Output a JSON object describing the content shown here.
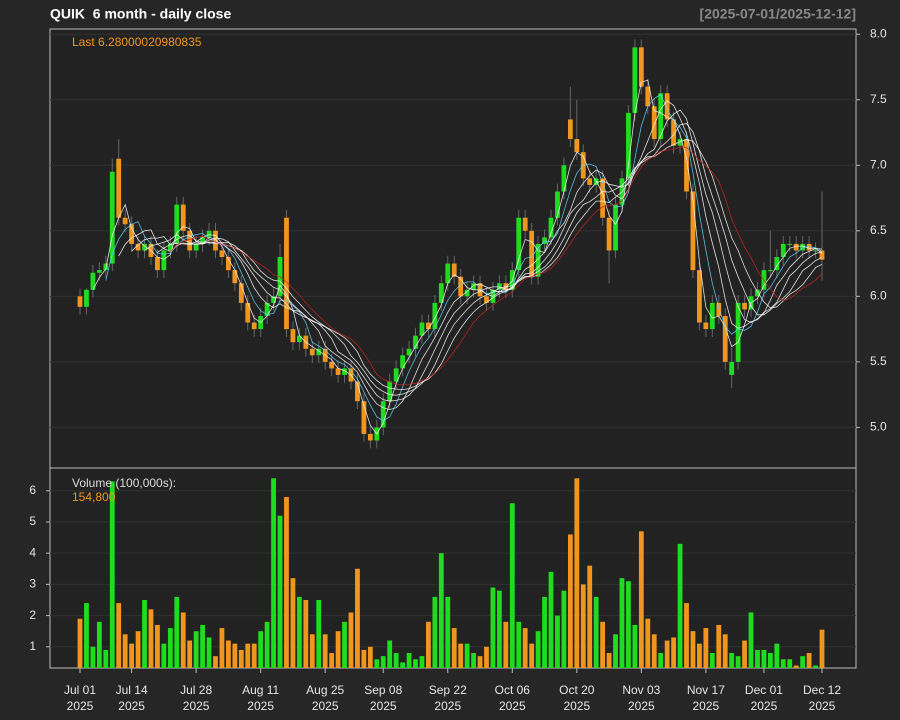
{
  "chart_data": [
    {
      "type": "candlestick",
      "title": "QUIK  6 month - daily close",
      "subtitle": "[2025-07-01/2025-12-12]",
      "annotation": "Last 6.28000020980835",
      "up_color": "#1fdc1f",
      "down_color": "#f0961e",
      "x": [
        "2025-07-01",
        "2025-07-02",
        "2025-07-03",
        "2025-07-07",
        "2025-07-08",
        "2025-07-09",
        "2025-07-10",
        "2025-07-11",
        "2025-07-14",
        "2025-07-15",
        "2025-07-16",
        "2025-07-17",
        "2025-07-18",
        "2025-07-21",
        "2025-07-22",
        "2025-07-23",
        "2025-07-24",
        "2025-07-25",
        "2025-07-28",
        "2025-07-29",
        "2025-07-30",
        "2025-07-31",
        "2025-08-01",
        "2025-08-04",
        "2025-08-05",
        "2025-08-06",
        "2025-08-07",
        "2025-08-08",
        "2025-08-11",
        "2025-08-12",
        "2025-08-13",
        "2025-08-14",
        "2025-08-15",
        "2025-08-18",
        "2025-08-19",
        "2025-08-20",
        "2025-08-21",
        "2025-08-22",
        "2025-08-25",
        "2025-08-26",
        "2025-08-27",
        "2025-08-28",
        "2025-08-29",
        "2025-09-02",
        "2025-09-03",
        "2025-09-04",
        "2025-09-05",
        "2025-09-08",
        "2025-09-09",
        "2025-09-10",
        "2025-09-11",
        "2025-09-12",
        "2025-09-15",
        "2025-09-16",
        "2025-09-17",
        "2025-09-18",
        "2025-09-19",
        "2025-09-22",
        "2025-09-23",
        "2025-09-24",
        "2025-09-25",
        "2025-09-26",
        "2025-09-29",
        "2025-09-30",
        "2025-10-01",
        "2025-10-02",
        "2025-10-03",
        "2025-10-06",
        "2025-10-07",
        "2025-10-08",
        "2025-10-09",
        "2025-10-10",
        "2025-10-13",
        "2025-10-14",
        "2025-10-15",
        "2025-10-16",
        "2025-10-17",
        "2025-10-20",
        "2025-10-21",
        "2025-10-22",
        "2025-10-23",
        "2025-10-24",
        "2025-10-27",
        "2025-10-28",
        "2025-10-29",
        "2025-10-30",
        "2025-10-31",
        "2025-11-03",
        "2025-11-04",
        "2025-11-05",
        "2025-11-06",
        "2025-11-07",
        "2025-11-10",
        "2025-11-11",
        "2025-11-12",
        "2025-11-13",
        "2025-11-14",
        "2025-11-17",
        "2025-11-18",
        "2025-11-19",
        "2025-11-20",
        "2025-11-21",
        "2025-11-24",
        "2025-11-25",
        "2025-11-26",
        "2025-11-28",
        "2025-12-01",
        "2025-12-02",
        "2025-12-03",
        "2025-12-04",
        "2025-12-05",
        "2025-12-08",
        "2025-12-09",
        "2025-12-10",
        "2025-12-11",
        "2025-12-12"
      ],
      "open": [
        6.0,
        5.92,
        6.05,
        6.18,
        6.2,
        6.25,
        7.05,
        6.6,
        6.55,
        6.4,
        6.35,
        6.4,
        6.3,
        6.2,
        6.35,
        6.4,
        6.7,
        6.5,
        6.35,
        6.4,
        6.45,
        6.5,
        6.35,
        6.3,
        6.2,
        6.1,
        5.95,
        5.8,
        5.75,
        5.85,
        5.95,
        6.0,
        6.6,
        5.75,
        5.65,
        5.7,
        5.6,
        5.55,
        5.6,
        5.5,
        5.45,
        5.4,
        5.45,
        5.35,
        5.2,
        4.95,
        4.9,
        5.0,
        5.2,
        5.35,
        5.45,
        5.55,
        5.6,
        5.7,
        5.8,
        5.75,
        5.95,
        6.1,
        6.25,
        6.15,
        6.0,
        6.05,
        6.1,
        6.0,
        5.95,
        6.05,
        6.1,
        6.05,
        6.2,
        6.6,
        6.5,
        6.15,
        6.4,
        6.45,
        6.6,
        6.8,
        7.35,
        7.2,
        7.1,
        6.9,
        6.85,
        6.9,
        6.6,
        6.35,
        6.7,
        6.9,
        7.4,
        7.9,
        7.6,
        7.45,
        7.2,
        7.55,
        7.35,
        7.15,
        7.2,
        6.8,
        6.2,
        5.8,
        5.75,
        5.95,
        5.85,
        5.4,
        5.5,
        5.95,
        5.9,
        6.0,
        6.05,
        6.2,
        6.2,
        6.3,
        6.4,
        6.4,
        6.35,
        6.4,
        6.35,
        6.35
      ],
      "high": [
        6.06,
        6.06,
        6.24,
        6.26,
        6.31,
        7.05,
        7.2,
        6.66,
        6.61,
        6.46,
        6.46,
        6.46,
        6.36,
        6.41,
        6.46,
        6.76,
        6.76,
        6.56,
        6.46,
        6.51,
        6.56,
        6.56,
        6.41,
        6.36,
        6.26,
        6.16,
        6.01,
        5.86,
        5.91,
        6.01,
        6.06,
        6.4,
        6.66,
        5.81,
        5.76,
        5.76,
        5.66,
        5.66,
        5.66,
        5.56,
        5.51,
        5.51,
        5.51,
        5.41,
        5.26,
        5.01,
        5.06,
        5.26,
        5.41,
        5.51,
        5.61,
        5.66,
        5.76,
        5.86,
        5.86,
        6.01,
        6.16,
        6.31,
        6.31,
        6.21,
        6.11,
        6.16,
        6.16,
        6.06,
        6.11,
        6.16,
        6.16,
        6.26,
        6.66,
        6.66,
        6.56,
        6.46,
        6.51,
        6.66,
        6.86,
        7.06,
        7.6,
        7.5,
        7.16,
        6.96,
        6.96,
        6.96,
        6.66,
        6.76,
        6.96,
        7.46,
        7.96,
        7.96,
        7.66,
        7.51,
        7.61,
        7.61,
        7.41,
        7.26,
        7.26,
        6.86,
        6.26,
        5.86,
        6.01,
        6.01,
        5.91,
        5.61,
        6.01,
        6.01,
        6.06,
        6.11,
        6.26,
        6.5,
        6.36,
        6.46,
        6.46,
        6.46,
        6.46,
        6.46,
        6.41,
        6.8
      ],
      "low": [
        5.86,
        5.86,
        5.99,
        6.12,
        6.14,
        6.19,
        6.54,
        6.49,
        6.34,
        6.29,
        6.29,
        6.24,
        6.14,
        6.14,
        6.29,
        6.34,
        6.44,
        6.29,
        6.29,
        6.34,
        6.39,
        6.29,
        6.24,
        6.14,
        6.04,
        5.89,
        5.74,
        5.69,
        5.69,
        5.79,
        5.89,
        5.94,
        5.69,
        5.59,
        5.59,
        5.54,
        5.49,
        5.49,
        5.44,
        5.39,
        5.34,
        5.34,
        5.29,
        5.14,
        4.89,
        4.84,
        4.84,
        4.94,
        5.14,
        5.29,
        5.39,
        5.49,
        5.54,
        5.64,
        5.69,
        5.69,
        5.89,
        6.04,
        6.09,
        5.94,
        5.94,
        5.99,
        5.94,
        5.89,
        5.89,
        5.99,
        5.99,
        5.99,
        6.14,
        6.44,
        6.09,
        6.09,
        6.34,
        6.39,
        6.54,
        6.74,
        7.14,
        7.04,
        6.84,
        6.79,
        6.79,
        6.54,
        6.1,
        6.29,
        6.64,
        6.84,
        7.34,
        7.54,
        7.39,
        7.14,
        7.14,
        7.29,
        7.09,
        7.09,
        6.74,
        6.14,
        5.74,
        5.69,
        5.69,
        5.79,
        5.44,
        5.3,
        5.44,
        5.84,
        5.84,
        5.94,
        5.99,
        6.14,
        6.14,
        6.24,
        6.34,
        6.29,
        6.29,
        6.29,
        6.29,
        6.12
      ],
      "close": [
        5.92,
        6.05,
        6.18,
        6.2,
        6.25,
        6.95,
        6.6,
        6.55,
        6.4,
        6.35,
        6.4,
        6.3,
        6.2,
        6.35,
        6.4,
        6.7,
        6.5,
        6.35,
        6.4,
        6.45,
        6.5,
        6.35,
        6.3,
        6.2,
        6.1,
        5.95,
        5.8,
        5.75,
        5.85,
        5.95,
        6.0,
        6.3,
        5.75,
        5.65,
        5.7,
        5.6,
        5.55,
        5.6,
        5.5,
        5.45,
        5.4,
        5.45,
        5.35,
        5.2,
        4.95,
        4.9,
        5.0,
        5.2,
        5.35,
        5.45,
        5.55,
        5.6,
        5.7,
        5.8,
        5.75,
        5.95,
        6.1,
        6.25,
        6.15,
        6.0,
        6.05,
        6.1,
        6.0,
        5.95,
        6.05,
        6.1,
        6.05,
        6.2,
        6.6,
        6.5,
        6.15,
        6.4,
        6.45,
        6.6,
        6.8,
        7.0,
        7.2,
        7.1,
        6.9,
        6.85,
        6.9,
        6.6,
        6.35,
        6.7,
        6.9,
        7.4,
        7.9,
        7.6,
        7.45,
        7.2,
        7.55,
        7.35,
        7.15,
        7.2,
        6.8,
        6.2,
        5.8,
        5.75,
        5.95,
        5.85,
        5.5,
        5.5,
        5.95,
        5.9,
        6.0,
        6.05,
        6.2,
        6.2,
        6.3,
        6.4,
        6.4,
        6.35,
        6.4,
        6.35,
        6.35,
        6.28
      ],
      "moving_averages": [
        3,
        5,
        7,
        9,
        11,
        13,
        15
      ],
      "ma_colors": [
        "#ffffff",
        "#5fd7ff",
        "#ffffff",
        "#ffffff",
        "#ffffff",
        "#ffffff",
        "#cc2222"
      ],
      "ylim": [
        4.69,
        8.04
      ],
      "yticks": [
        {
          "value": 5,
          "label": "5.0"
        },
        {
          "value": 5.5,
          "label": "5.5"
        },
        {
          "value": 6,
          "label": "6.0"
        },
        {
          "value": 6.5,
          "label": "6.5"
        },
        {
          "value": 7,
          "label": "7.0"
        },
        {
          "value": 7.5,
          "label": "7.5"
        },
        {
          "value": 8,
          "label": "8.0"
        }
      ],
      "grid": true
    },
    {
      "type": "bar",
      "annotation": "Volume (100,000s):",
      "last_label": "154,800",
      "values": [
        1.9,
        2.4,
        1.0,
        1.8,
        0.9,
        6.3,
        2.4,
        1.4,
        1.1,
        1.5,
        2.5,
        2.2,
        1.7,
        1.1,
        1.6,
        2.6,
        2.1,
        1.2,
        1.5,
        1.7,
        1.3,
        0.7,
        1.6,
        1.2,
        1.1,
        0.9,
        1.1,
        1.1,
        1.5,
        1.8,
        6.4,
        5.2,
        5.8,
        3.2,
        2.6,
        2.5,
        1.4,
        2.5,
        1.4,
        0.8,
        1.5,
        1.8,
        2.1,
        3.5,
        0.9,
        1.0,
        0.6,
        0.7,
        1.2,
        0.8,
        0.5,
        0.8,
        0.6,
        0.7,
        1.8,
        2.6,
        4.0,
        2.6,
        1.6,
        1.1,
        1.1,
        0.8,
        0.7,
        1.0,
        2.9,
        2.8,
        1.8,
        5.6,
        1.8,
        1.6,
        1.1,
        1.5,
        2.6,
        3.4,
        2.0,
        2.8,
        4.6,
        6.4,
        3.0,
        3.6,
        2.6,
        1.8,
        0.8,
        1.4,
        3.2,
        3.1,
        1.7,
        4.7,
        1.9,
        1.4,
        0.8,
        1.2,
        1.3,
        4.3,
        2.4,
        1.5,
        1.1,
        1.6,
        0.8,
        1.7,
        1.4,
        0.8,
        0.7,
        1.2,
        2.1,
        0.9,
        0.9,
        0.8,
        1.1,
        0.6,
        0.6,
        0.4,
        0.7,
        0.8,
        0.4,
        1.548
      ],
      "ylim": [
        0.32,
        6.73
      ],
      "yticks": [
        1,
        2,
        3,
        4,
        5,
        6
      ],
      "grid": true,
      "xticks": [
        {
          "value": "2025-07-01",
          "label": [
            "Jul 01",
            "2025"
          ]
        },
        {
          "value": "2025-07-14",
          "label": [
            "Jul 14",
            "2025"
          ]
        },
        {
          "value": "2025-07-28",
          "label": [
            "Jul 28",
            "2025"
          ]
        },
        {
          "value": "2025-08-11",
          "label": [
            "Aug 11",
            "2025"
          ]
        },
        {
          "value": "2025-08-25",
          "label": [
            "Aug 25",
            "2025"
          ]
        },
        {
          "value": "2025-09-08",
          "label": [
            "Sep 08",
            "2025"
          ]
        },
        {
          "value": "2025-09-22",
          "label": [
            "Sep 22",
            "2025"
          ]
        },
        {
          "value": "2025-10-06",
          "label": [
            "Oct 06",
            "2025"
          ]
        },
        {
          "value": "2025-10-20",
          "label": [
            "Oct 20",
            "2025"
          ]
        },
        {
          "value": "2025-11-03",
          "label": [
            "Nov 03",
            "2025"
          ]
        },
        {
          "value": "2025-11-17",
          "label": [
            "Nov 17",
            "2025"
          ]
        },
        {
          "value": "2025-12-01",
          "label": [
            "Dec 01",
            "2025"
          ]
        },
        {
          "value": "2025-12-12",
          "label": [
            "Dec 12",
            "2025"
          ]
        }
      ]
    }
  ]
}
